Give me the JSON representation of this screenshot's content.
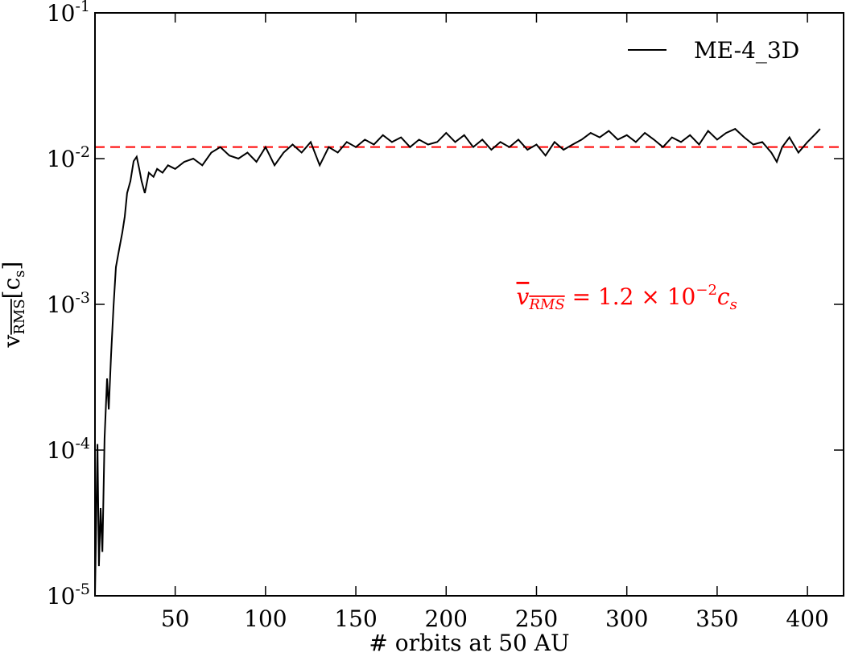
{
  "chart_data": {
    "type": "line",
    "xlabel": "# orbits at 50 AU",
    "ylabel": {
      "base": "v",
      "sub": "RMS",
      "open": "[c",
      "open_sub": "s",
      "close": "]"
    },
    "xlim": [
      5.6,
      420
    ],
    "ylim": [
      1e-05,
      0.1
    ],
    "log_y": true,
    "xticks": [
      50,
      100,
      150,
      200,
      250,
      300,
      350,
      400
    ],
    "yticks": [
      {
        "value": 1e-05,
        "label": "10-5"
      },
      {
        "value": 0.0001,
        "label": "10-4"
      },
      {
        "value": 0.001,
        "label": "10-3"
      },
      {
        "value": 0.01,
        "label": "10-2"
      },
      {
        "value": 0.1,
        "label": "10-1"
      }
    ],
    "legend": "upper right",
    "series": [
      {
        "name": "ME-4_3D",
        "color": "#000000",
        "x": [
          5.6,
          7,
          7.8,
          8.7,
          9.7,
          10.9,
          12.3,
          13.2,
          14.5,
          15.9,
          17.2,
          19,
          20.7,
          22.1,
          23.4,
          25.2,
          27,
          28.7,
          30.1,
          31.4,
          33.2,
          35.4,
          38,
          40,
          43,
          46,
          50,
          55,
          60,
          65,
          70,
          75,
          80,
          85,
          90,
          95,
          100,
          105,
          110,
          115,
          120,
          125,
          130,
          135,
          140,
          145,
          150,
          155,
          160,
          165,
          170,
          175,
          180,
          185,
          190,
          195,
          200,
          205,
          210,
          215,
          220,
          225,
          230,
          235,
          240,
          245,
          250,
          255,
          260,
          265,
          270,
          275,
          280,
          285,
          290,
          295,
          300,
          305,
          310,
          315,
          320,
          325,
          330,
          335,
          340,
          345,
          350,
          355,
          360,
          365,
          370,
          375,
          380,
          383,
          386,
          390,
          395,
          400,
          405,
          407
        ],
        "values": [
          1e-05,
          0.00011,
          1.6e-05,
          4e-05,
          2e-05,
          0.00012,
          0.00031,
          0.00019,
          0.00045,
          0.00098,
          0.0018,
          0.0024,
          0.0031,
          0.004,
          0.0058,
          0.007,
          0.0096,
          0.0103,
          0.0085,
          0.007,
          0.0058,
          0.008,
          0.0075,
          0.0085,
          0.008,
          0.009,
          0.0085,
          0.0095,
          0.01,
          0.009,
          0.011,
          0.012,
          0.0105,
          0.01,
          0.011,
          0.0095,
          0.012,
          0.009,
          0.011,
          0.0125,
          0.011,
          0.013,
          0.009,
          0.012,
          0.011,
          0.013,
          0.012,
          0.0135,
          0.0125,
          0.0145,
          0.013,
          0.014,
          0.012,
          0.0135,
          0.0125,
          0.013,
          0.015,
          0.013,
          0.0145,
          0.012,
          0.0135,
          0.0115,
          0.013,
          0.012,
          0.0135,
          0.0115,
          0.0125,
          0.0105,
          0.013,
          0.0115,
          0.0125,
          0.0135,
          0.015,
          0.014,
          0.0155,
          0.0135,
          0.0145,
          0.013,
          0.015,
          0.0135,
          0.012,
          0.014,
          0.013,
          0.0145,
          0.0125,
          0.0155,
          0.0135,
          0.015,
          0.016,
          0.014,
          0.0125,
          0.013,
          0.011,
          0.0095,
          0.012,
          0.014,
          0.011,
          0.013,
          0.015,
          0.016
        ]
      }
    ],
    "reference_line": {
      "value": 0.012,
      "color": "#ff0000"
    },
    "annotation": {
      "base": "v",
      "sub": "RMS",
      "mid": " = 1.2 × 10",
      "sup": "−2",
      "tail": "c",
      "tail_sub": "s",
      "color": "#ff0000",
      "x": 300,
      "y": 0.001
    }
  }
}
